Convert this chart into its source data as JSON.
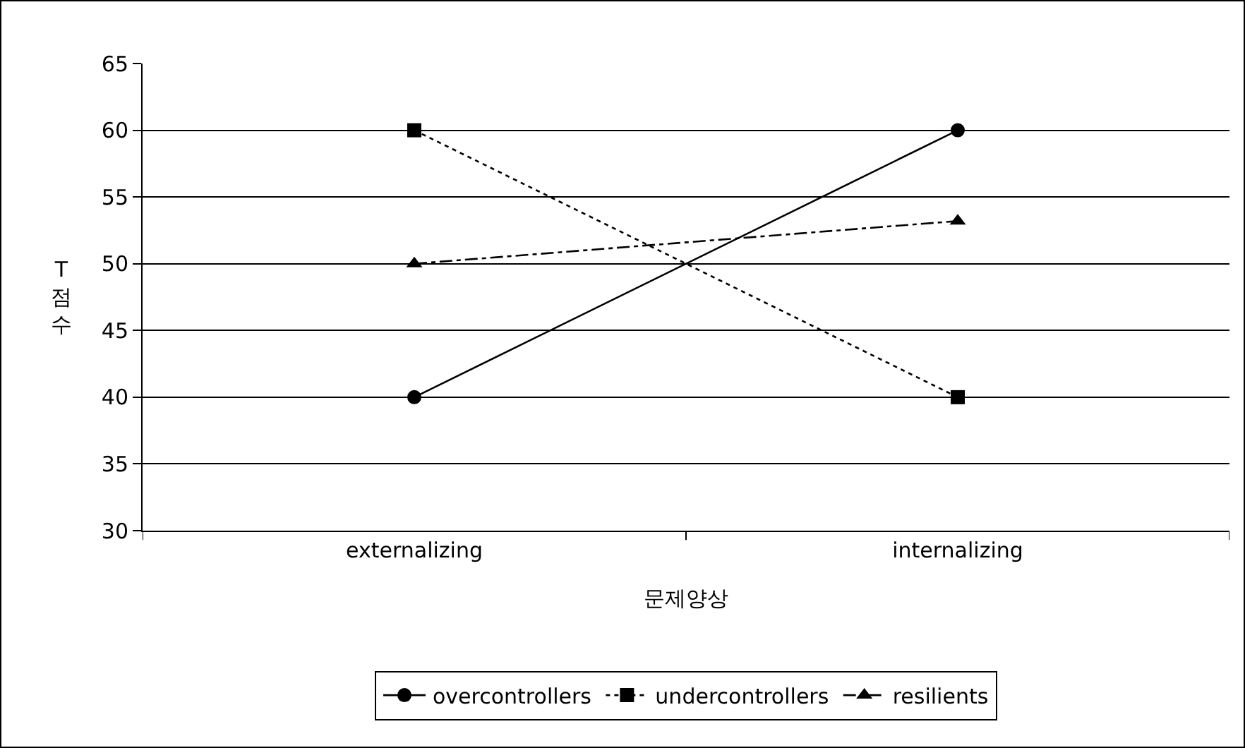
{
  "chart_data": {
    "type": "line",
    "xlabel": "문제양상",
    "ylabel": "T점수",
    "categories": [
      "externalizing",
      "internalizing"
    ],
    "series": [
      {
        "name": "overcontrollers",
        "color": "#000000",
        "marker": "circle",
        "line_style": "solid",
        "values": [
          40,
          60
        ]
      },
      {
        "name": "undercontrollers",
        "color": "#000000",
        "marker": "square",
        "line_style": "dotted",
        "values": [
          60,
          40
        ]
      },
      {
        "name": "resilients",
        "color": "#000000",
        "marker": "triangle",
        "line_style": "dashed",
        "values": [
          50,
          53.2
        ]
      }
    ],
    "ylim": [
      30,
      65
    ],
    "yticks": [
      30,
      35,
      40,
      45,
      50,
      55,
      60,
      65
    ],
    "grid": "y",
    "legend": "bottom"
  }
}
